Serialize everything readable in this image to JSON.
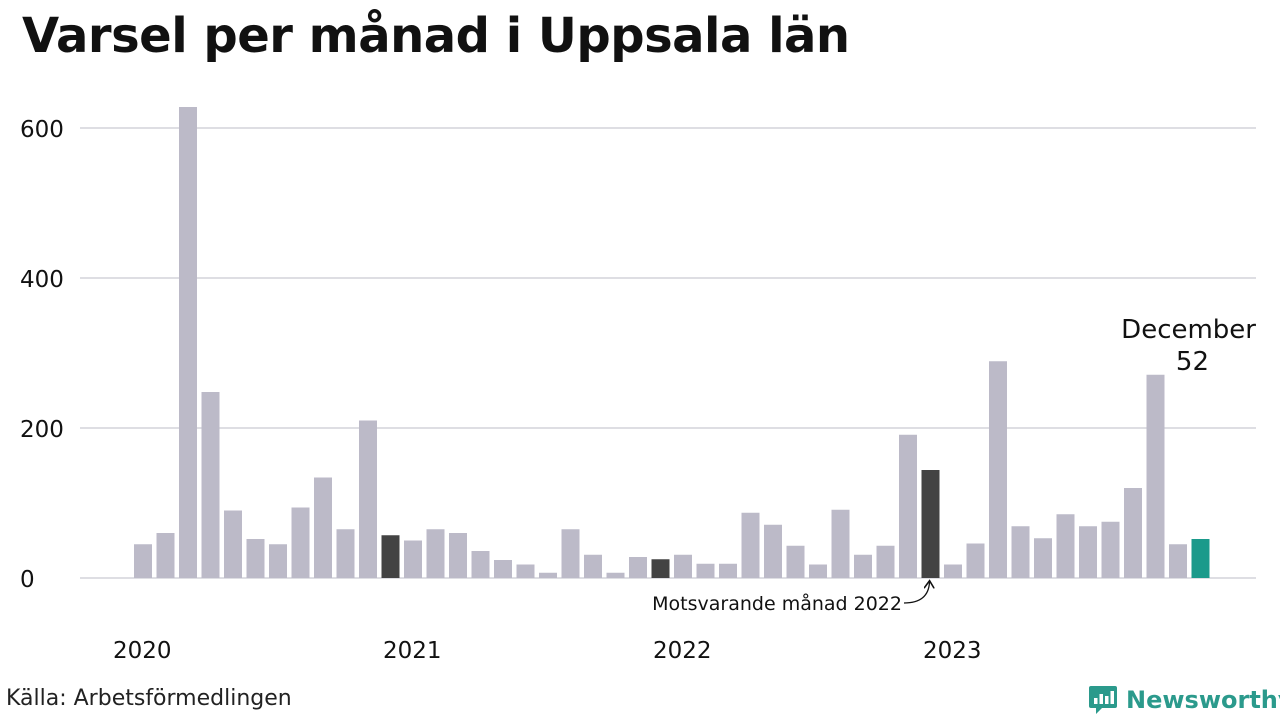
{
  "title": "Varsel per månad i Uppsala län",
  "source": "Källa: Arbetsförmedlingen",
  "brand": {
    "name": "Newsworthy",
    "icon": "newsworthy-logo-icon"
  },
  "colors": {
    "bar": "#bcbac8",
    "comparison": "#434343",
    "highlight": "#1b9a8b",
    "grid": "#dedee3",
    "text": "#111111",
    "brand": "#2b9a8c"
  },
  "chart_data": {
    "type": "bar",
    "title": "Varsel per månad i Uppsala län",
    "xlabel": "",
    "ylabel": "",
    "ylim": [
      0,
      640
    ],
    "yticks": [
      0,
      200,
      400,
      600
    ],
    "grid": true,
    "year_labels": [
      {
        "label": "2020",
        "index": 0
      },
      {
        "label": "2021",
        "index": 12
      },
      {
        "label": "2022",
        "index": 24
      },
      {
        "label": "2023",
        "index": 36
      }
    ],
    "categories": [
      "2020-01",
      "2020-02",
      "2020-03",
      "2020-04",
      "2020-05",
      "2020-06",
      "2020-07",
      "2020-08",
      "2020-09",
      "2020-10",
      "2020-11",
      "2020-12",
      "2021-01",
      "2021-02",
      "2021-03",
      "2021-04",
      "2021-05",
      "2021-06",
      "2021-07",
      "2021-08",
      "2021-09",
      "2021-10",
      "2021-11",
      "2021-12",
      "2022-01",
      "2022-02",
      "2022-03",
      "2022-04",
      "2022-05",
      "2022-06",
      "2022-07",
      "2022-08",
      "2022-09",
      "2022-10",
      "2022-11",
      "2022-12",
      "2023-01",
      "2023-02",
      "2023-03",
      "2023-04",
      "2023-05",
      "2023-06",
      "2023-07",
      "2023-08",
      "2023-09",
      "2023-10",
      "2023-11",
      "2023-12"
    ],
    "values": [
      45,
      60,
      628,
      248,
      90,
      52,
      45,
      94,
      134,
      65,
      210,
      57,
      50,
      65,
      60,
      36,
      24,
      18,
      7,
      65,
      31,
      7,
      28,
      25,
      31,
      19,
      19,
      87,
      71,
      43,
      18,
      91,
      31,
      43,
      191,
      144,
      18,
      46,
      289,
      69,
      53,
      85,
      69,
      75,
      120,
      271,
      45,
      52
    ],
    "comparison_indices": [
      11,
      23,
      35
    ],
    "highlight_index": 47,
    "annotations": {
      "latest": {
        "label": "December",
        "value": "52"
      },
      "comparison": {
        "label": "Motsvarande månad 2022"
      }
    }
  }
}
